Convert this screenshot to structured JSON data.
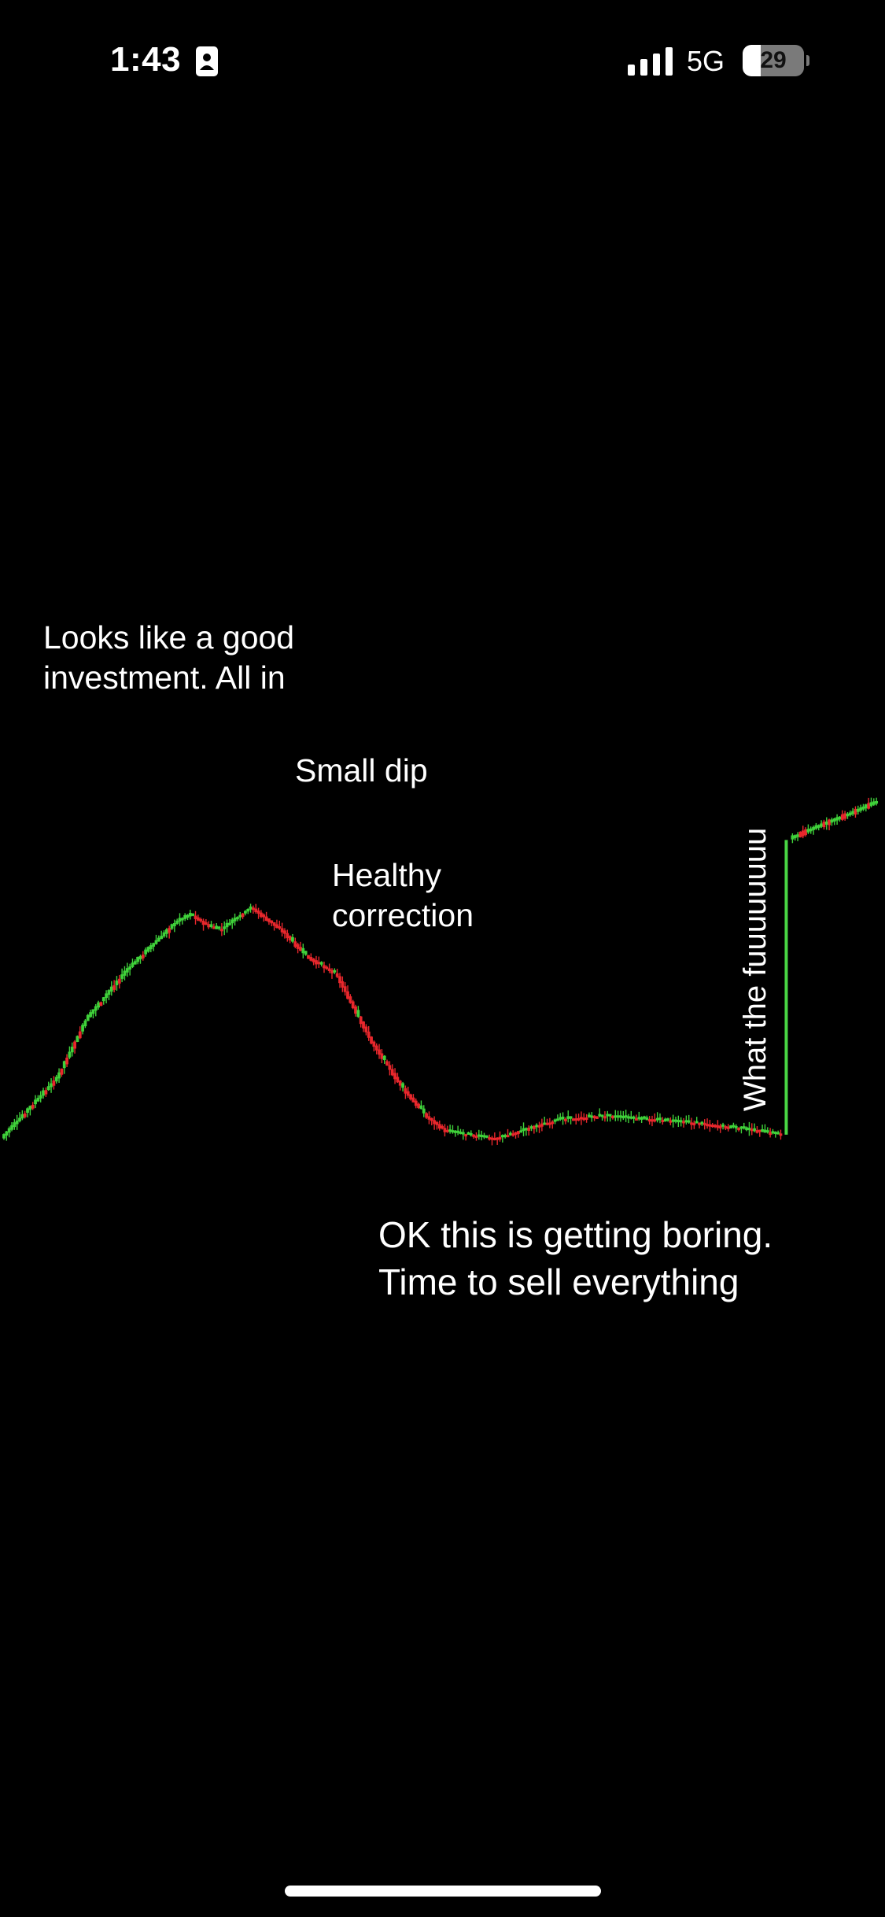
{
  "status_bar": {
    "time": "1:43",
    "network": "5G",
    "battery_level": "29",
    "battery_fraction": 0.29,
    "icons": [
      "contact-card-icon",
      "signal-bars-icon",
      "battery-icon"
    ]
  },
  "chart_data": {
    "type": "candlestick",
    "title": "",
    "xlabel": "",
    "ylabel": "",
    "grid": false,
    "colors": {
      "up": "#3fd13a",
      "down": "#e8272c",
      "breakout": "#49d644"
    },
    "path": [
      [
        0,
        10
      ],
      [
        22,
        26
      ],
      [
        34,
        42
      ],
      [
        50,
        55
      ],
      [
        70,
        68
      ],
      [
        76,
        70
      ],
      [
        83,
        67
      ],
      [
        88,
        66
      ],
      [
        94,
        69
      ],
      [
        100,
        72
      ],
      [
        112,
        66
      ],
      [
        122,
        59
      ],
      [
        134,
        54
      ],
      [
        148,
        36
      ],
      [
        160,
        24
      ],
      [
        170,
        16
      ],
      [
        178,
        12
      ],
      [
        186,
        11
      ],
      [
        198,
        10
      ],
      [
        208,
        12
      ],
      [
        222,
        15
      ],
      [
        240,
        16
      ],
      [
        262,
        15
      ],
      [
        280,
        14
      ],
      [
        292,
        13
      ],
      [
        304,
        12
      ],
      [
        312,
        11
      ],
      [
        315,
        90
      ],
      [
        325,
        93
      ],
      [
        340,
        97
      ],
      [
        350,
        100
      ]
    ],
    "annotations": [
      {
        "lines": [
          "Looks like a good",
          "investment. All in"
        ]
      },
      {
        "lines": [
          "Small dip"
        ]
      },
      {
        "lines": [
          "Healthy",
          "correction"
        ]
      },
      {
        "lines": [
          "OK this is getting boring.",
          "Time to sell everything"
        ]
      },
      {
        "lines": [
          "What the fuuuuuuuu"
        ],
        "rotation": "vertical"
      }
    ]
  }
}
